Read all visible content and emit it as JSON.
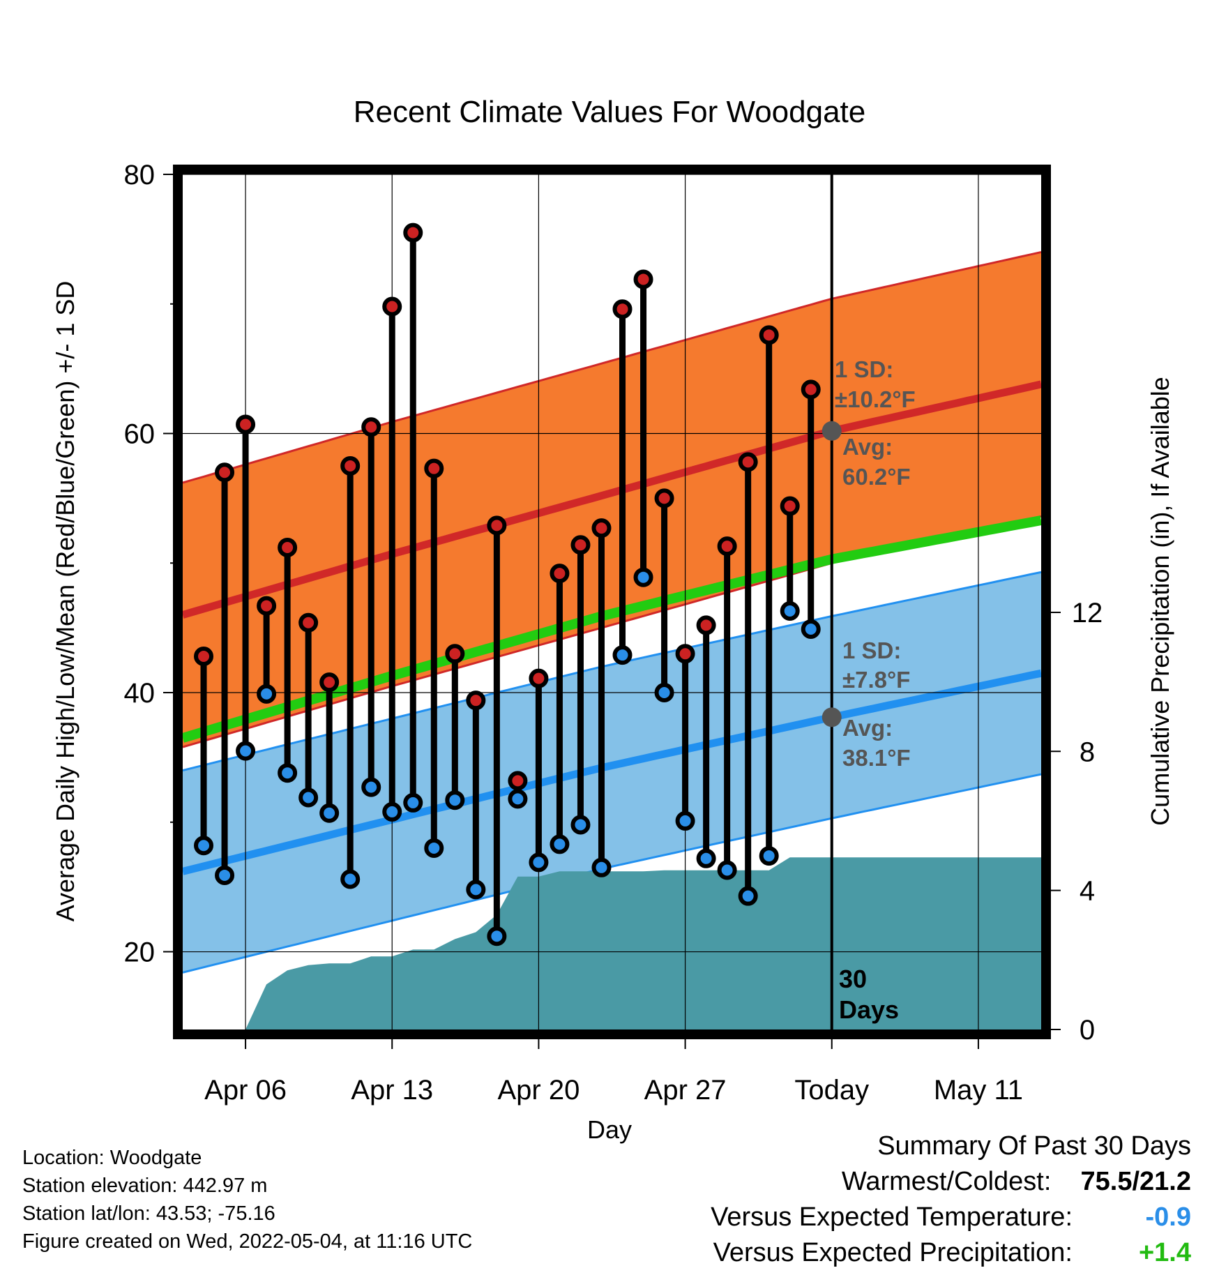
{
  "chart_data": {
    "type": "line",
    "title": "Recent Climate Values For Woodgate",
    "xlabel": "Day",
    "ylabel_left": "Average Daily High/Low/Mean (Red/Blue/Green) +/- 1 SD",
    "ylabel_right": "Cumulative Precipitation (in), If Available",
    "y_left_range": [
      14,
      80
    ],
    "y_left_ticks": [
      "20",
      "40",
      "60",
      "80"
    ],
    "y_right_range": [
      0,
      24.6
    ],
    "y_right_ticks": [
      "0",
      "4",
      "8",
      "12"
    ],
    "x_range": [
      "2022-04-03",
      "2022-05-14"
    ],
    "x_ticks": [
      {
        "date": "2022-04-06",
        "label": "Apr 06"
      },
      {
        "date": "2022-04-13",
        "label": "Apr 13"
      },
      {
        "date": "2022-04-20",
        "label": "Apr 20"
      },
      {
        "date": "2022-04-27",
        "label": "Apr 27"
      },
      {
        "date": "2022-05-04",
        "label": "Today"
      },
      {
        "date": "2022-05-11",
        "label": "May 11"
      }
    ],
    "grid": true,
    "normal_high_mean": [
      {
        "date": "2022-04-03",
        "value": 46.0
      },
      {
        "date": "2022-04-13",
        "value": 50.7
      },
      {
        "date": "2022-04-23",
        "value": 55.2
      },
      {
        "date": "2022-05-04",
        "value": 60.2
      },
      {
        "date": "2022-05-14",
        "value": 63.8
      }
    ],
    "high_sd": 10.2,
    "normal_low_mean": [
      {
        "date": "2022-04-03",
        "value": 26.2
      },
      {
        "date": "2022-04-13",
        "value": 30.2
      },
      {
        "date": "2022-04-23",
        "value": 34.2
      },
      {
        "date": "2022-05-04",
        "value": 38.1
      },
      {
        "date": "2022-05-14",
        "value": 41.5
      }
    ],
    "low_sd": 7.8,
    "normal_mean": [
      {
        "date": "2022-04-03",
        "value": 36.5
      },
      {
        "date": "2022-04-13",
        "value": 41.3
      },
      {
        "date": "2022-04-23",
        "value": 45.9
      },
      {
        "date": "2022-05-04",
        "value": 50.3
      },
      {
        "date": "2022-05-14",
        "value": 53.3
      }
    ],
    "daily": [
      {
        "date": "2022-04-04",
        "high": 42.8,
        "low": 28.2
      },
      {
        "date": "2022-04-05",
        "high": 57.0,
        "low": 25.9
      },
      {
        "date": "2022-04-06",
        "high": 60.7,
        "low": 35.5
      },
      {
        "date": "2022-04-07",
        "high": 46.7,
        "low": 39.9
      },
      {
        "date": "2022-04-08",
        "high": 51.2,
        "low": 33.8
      },
      {
        "date": "2022-04-09",
        "high": 45.4,
        "low": 31.9
      },
      {
        "date": "2022-04-10",
        "high": 40.8,
        "low": 30.7
      },
      {
        "date": "2022-04-11",
        "high": 57.5,
        "low": 25.6
      },
      {
        "date": "2022-04-12",
        "high": 60.5,
        "low": 32.7
      },
      {
        "date": "2022-04-13",
        "high": 69.8,
        "low": 30.8
      },
      {
        "date": "2022-04-14",
        "high": 75.5,
        "low": 31.5
      },
      {
        "date": "2022-04-15",
        "high": 57.3,
        "low": 28.0
      },
      {
        "date": "2022-04-16",
        "high": 43.0,
        "low": 31.7
      },
      {
        "date": "2022-04-17",
        "high": 39.4,
        "low": 24.8
      },
      {
        "date": "2022-04-18",
        "high": 52.9,
        "low": 21.2
      },
      {
        "date": "2022-04-19",
        "high": 33.2,
        "low": 31.8
      },
      {
        "date": "2022-04-20",
        "high": 41.1,
        "low": 26.9
      },
      {
        "date": "2022-04-21",
        "high": 49.2,
        "low": 28.3
      },
      {
        "date": "2022-04-22",
        "high": 51.4,
        "low": 29.8
      },
      {
        "date": "2022-04-23",
        "high": 52.7,
        "low": 26.5
      },
      {
        "date": "2022-04-24",
        "high": 69.6,
        "low": 42.9
      },
      {
        "date": "2022-04-25",
        "high": 71.9,
        "low": 48.9
      },
      {
        "date": "2022-04-26",
        "high": 55.0,
        "low": 40.0
      },
      {
        "date": "2022-04-27",
        "high": 43.0,
        "low": 30.1
      },
      {
        "date": "2022-04-28",
        "high": 45.2,
        "low": 27.2
      },
      {
        "date": "2022-04-29",
        "high": 51.3,
        "low": 26.3
      },
      {
        "date": "2022-04-30",
        "high": 57.8,
        "low": 24.3
      },
      {
        "date": "2022-05-01",
        "high": 67.6,
        "low": 27.4
      },
      {
        "date": "2022-05-02",
        "high": 54.4,
        "low": 46.3
      },
      {
        "date": "2022-05-03",
        "high": 63.4,
        "low": 44.9
      }
    ],
    "precip_cumulative": [
      {
        "date": "2022-04-03",
        "value": null
      },
      {
        "date": "2022-04-04",
        "value": null
      },
      {
        "date": "2022-04-05",
        "value": null
      },
      {
        "date": "2022-04-06",
        "value": 0.0
      },
      {
        "date": "2022-04-07",
        "value": 1.3
      },
      {
        "date": "2022-04-08",
        "value": 1.7
      },
      {
        "date": "2022-04-09",
        "value": 1.85
      },
      {
        "date": "2022-04-10",
        "value": 1.9
      },
      {
        "date": "2022-04-11",
        "value": 1.9
      },
      {
        "date": "2022-04-12",
        "value": 2.1
      },
      {
        "date": "2022-04-13",
        "value": 2.1
      },
      {
        "date": "2022-04-14",
        "value": 2.3
      },
      {
        "date": "2022-04-15",
        "value": 2.3
      },
      {
        "date": "2022-04-16",
        "value": 2.6
      },
      {
        "date": "2022-04-17",
        "value": 2.8
      },
      {
        "date": "2022-04-18",
        "value": 3.3
      },
      {
        "date": "2022-04-19",
        "value": 4.4
      },
      {
        "date": "2022-04-20",
        "value": 4.4
      },
      {
        "date": "2022-04-21",
        "value": 4.55
      },
      {
        "date": "2022-04-22",
        "value": 4.55
      },
      {
        "date": "2022-04-23",
        "value": 4.55
      },
      {
        "date": "2022-04-24",
        "value": 4.55
      },
      {
        "date": "2022-04-25",
        "value": 4.55
      },
      {
        "date": "2022-04-26",
        "value": 4.58
      },
      {
        "date": "2022-04-27",
        "value": 4.58
      },
      {
        "date": "2022-04-28",
        "value": 4.58
      },
      {
        "date": "2022-04-29",
        "value": 4.58
      },
      {
        "date": "2022-04-30",
        "value": 4.58
      },
      {
        "date": "2022-05-01",
        "value": 4.58
      },
      {
        "date": "2022-05-02",
        "value": 4.95
      },
      {
        "date": "2022-05-03",
        "value": 4.95
      },
      {
        "date": "2022-05-14",
        "value": 4.95
      }
    ],
    "annotations": {
      "high_sd_line1": "1 SD:",
      "high_sd_line2": "±10.2°F",
      "high_avg_line1": "Avg:",
      "high_avg_line2": "60.2°F",
      "low_sd_line1": "1 SD:",
      "low_sd_line2": "±7.8°F",
      "low_avg_line1": "Avg:",
      "low_avg_line2": "38.1°F",
      "days_line1": "30",
      "days_line2": "Days"
    },
    "colors": {
      "high_band": "#f57a2e",
      "high_line": "#d02828",
      "low_band": "#84c1e8",
      "low_line": "#2190f0",
      "mean_line": "#22cc11",
      "precip": "#4a9aa5",
      "high_marker": "#cc2222",
      "low_marker": "#2a8ee8",
      "avg_marker": "#555555",
      "cold_anomaly": "#2a8ee8",
      "wet_anomaly": "#22bb11"
    }
  },
  "info": {
    "location": "Location: Woodgate",
    "elevation": "Station elevation: 442.97 m",
    "latlon": "Station lat/lon: 43.53; -75.16",
    "created": "Figure created on Wed, 2022-05-04, at 11:16 UTC"
  },
  "summary": {
    "heading": "Summary Of Past 30 Days",
    "warm_cold_label": "Warmest/Coldest:",
    "warm_cold_value": "75.5/21.2",
    "temp_label": "Versus Expected Temperature:",
    "temp_value": "-0.9",
    "precip_label": "Versus Expected Precipitation:",
    "precip_value": "+1.4"
  }
}
